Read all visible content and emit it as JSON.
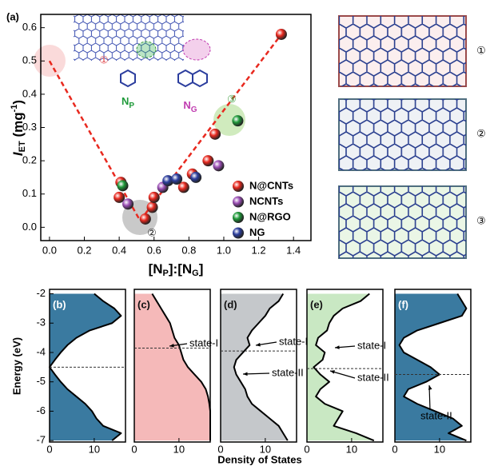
{
  "chart_data": [
    {
      "type": "scatter",
      "panel_label": "(a)",
      "xlabel_parts": [
        "[N",
        "P",
        "]:[N",
        "G",
        "]"
      ],
      "ylabel_parts": [
        "I",
        "ET",
        " (mg",
        "-1",
        ")"
      ],
      "xlim": [
        -0.05,
        1.5
      ],
      "ylim": [
        -0.04,
        0.64
      ],
      "xticks": [
        {
          "value": 0,
          "label": "0.0"
        },
        0.2,
        0.4,
        0.6,
        0.8,
        {
          "value": 1,
          "label": "1.0"
        },
        1.2,
        1.4
      ],
      "yticks": [
        {
          "value": 0,
          "label": "0.0"
        },
        0.1,
        0.2,
        0.3,
        0.4,
        0.5,
        0.6
      ],
      "legend": "lower right",
      "series": [
        {
          "name": "N@CNTs",
          "color": "#e8291f",
          "x": [
            0.4,
            0.41,
            0.55,
            0.59,
            0.6,
            0.77,
            0.82,
            0.91,
            0.95,
            1.33
          ],
          "values": [
            0.09,
            0.135,
            0.025,
            0.06,
            0.09,
            0.12,
            0.16,
            0.2,
            0.28,
            0.58
          ]
        },
        {
          "name": "NCNTs",
          "color": "#9b4fb5",
          "x": [
            0.45,
            0.65,
            0.97
          ],
          "values": [
            0.07,
            0.12,
            0.185
          ]
        },
        {
          "name": "N@RGO",
          "color": "#1f9a3a",
          "x": [
            0.42,
            1.08
          ],
          "values": [
            0.125,
            0.32
          ]
        },
        {
          "name": "NG",
          "color": "#2c3e9e",
          "x": [
            0.68,
            0.73,
            0.84
          ],
          "values": [
            0.14,
            0.145,
            0.15
          ]
        }
      ],
      "trend_line": {
        "color": "#e8291f",
        "x": [
          0,
          0.52,
          1.33
        ],
        "y": [
          0.5,
          0.02,
          0.58
        ]
      },
      "annotations": [
        {
          "text": "①",
          "color": "#e0464a"
        },
        {
          "text": "②",
          "color": "#222222"
        },
        {
          "text": "③",
          "color": "#3a9a3a"
        }
      ],
      "inset_labels": [
        {
          "main": "N",
          "sub": "P",
          "color": "#1f9a3a"
        },
        {
          "main": "N",
          "sub": "G",
          "color": "#c03cb0"
        }
      ]
    },
    {
      "type": "line",
      "panel_label": "(b)",
      "ylabel": "Energy (eV)",
      "color": "#000000",
      "fill": "#3a7aa0",
      "xlim": [
        0,
        17
      ],
      "ylim": [
        -7.05,
        -1.85
      ],
      "xticks": [
        0,
        10
      ],
      "yticks": [
        -2,
        -3,
        -4,
        -5,
        -6,
        -7
      ],
      "ref_energy": -4.5,
      "y": [
        -2,
        -2.25,
        -2.5,
        -2.75,
        -3,
        -3.25,
        -3.5,
        -3.75,
        -4,
        -4.25,
        -4.5,
        -4.75,
        -5,
        -5.25,
        -5.5,
        -5.75,
        -6,
        -6.25,
        -6.5,
        -6.75,
        -7
      ],
      "values": [
        10,
        12,
        14.5,
        16,
        14,
        9,
        6,
        4,
        2.5,
        1.2,
        0,
        1.2,
        2.5,
        4,
        6,
        8,
        9.5,
        10.5,
        12,
        16,
        14
      ],
      "annotations": []
    },
    {
      "type": "line",
      "panel_label": "(c)",
      "color": "#000000",
      "fill": "#f5b9b9",
      "xlim": [
        0,
        17
      ],
      "ylim": [
        -7.05,
        -1.85
      ],
      "xticks": [
        0,
        10
      ],
      "ref_energy": -3.85,
      "y": [
        -2,
        -2.25,
        -2.5,
        -2.75,
        -3,
        -3.25,
        -3.5,
        -3.75,
        -4,
        -4.25,
        -4.5,
        -4.75,
        -5,
        -5.25,
        -5.5,
        -5.75,
        -6,
        -6.25,
        -6.5,
        -6.75,
        -7
      ],
      "values": [
        4,
        5,
        6,
        7,
        8,
        8.5,
        9,
        10,
        10.5,
        11,
        12,
        13.5,
        15,
        16,
        16.5,
        16.8,
        17,
        17,
        17,
        17,
        17
      ],
      "annotations": [
        "state-I"
      ]
    },
    {
      "type": "line",
      "panel_label": "(d)",
      "xlabel": "Density of States",
      "color": "#000000",
      "fill": "#c5c8cb",
      "xlim": [
        0,
        17
      ],
      "ylim": [
        -7.05,
        -1.85
      ],
      "xticks": [
        0,
        10
      ],
      "ref_energy": -3.95,
      "y": [
        -2,
        -2.25,
        -2.5,
        -2.75,
        -3,
        -3.25,
        -3.5,
        -3.75,
        -4,
        -4.25,
        -4.5,
        -4.75,
        -5,
        -5.25,
        -5.5,
        -5.75,
        -6,
        -6.25,
        -6.5,
        -6.75,
        -7
      ],
      "values": [
        14,
        13,
        11,
        10,
        8.5,
        7,
        6,
        6.5,
        5,
        3.5,
        3,
        3.5,
        4.5,
        5.5,
        6,
        7,
        9,
        11,
        13,
        14,
        15
      ],
      "annotations": [
        "state-I",
        "state-II"
      ]
    },
    {
      "type": "line",
      "panel_label": "(e)",
      "color": "#000000",
      "fill": "#c9e8c3",
      "xlim": [
        0,
        17
      ],
      "ylim": [
        -7.05,
        -1.85
      ],
      "xticks": [
        0,
        10
      ],
      "ref_energy": -4.55,
      "y": [
        -2,
        -2.25,
        -2.5,
        -2.75,
        -3,
        -3.25,
        -3.5,
        -3.75,
        -4,
        -4.25,
        -4.5,
        -4.75,
        -5,
        -5.25,
        -5.5,
        -5.75,
        -6,
        -6.25,
        -6.5,
        -6.75,
        -7
      ],
      "values": [
        14,
        12,
        8,
        6,
        5,
        4.5,
        2.5,
        2,
        4,
        3.5,
        1.5,
        3,
        5,
        3,
        2,
        4,
        8,
        7,
        6,
        11,
        15
      ],
      "annotations": [
        "state-I",
        "state-II"
      ]
    },
    {
      "type": "line",
      "panel_label": "(f)",
      "color": "#000000",
      "fill": "#3a7aa0",
      "xlim": [
        0,
        17
      ],
      "ylim": [
        -7.05,
        -1.85
      ],
      "xticks": [
        0,
        10
      ],
      "ref_energy": -4.75,
      "y": [
        -2,
        -2.25,
        -2.5,
        -2.75,
        -3,
        -3.25,
        -3.5,
        -3.75,
        -4,
        -4.25,
        -4.5,
        -4.75,
        -5,
        -5.25,
        -5.5,
        -5.75,
        -6,
        -6.25,
        -6.5,
        -6.75,
        -7
      ],
      "values": [
        14,
        15,
        16,
        15,
        10,
        5,
        2,
        1,
        2,
        5,
        8,
        10,
        7,
        3,
        2,
        5,
        9,
        13,
        15,
        12,
        16
      ],
      "annotations": [
        "state-II"
      ]
    }
  ],
  "side_panels": {
    "labels": [
      "①",
      "②",
      "③"
    ]
  }
}
